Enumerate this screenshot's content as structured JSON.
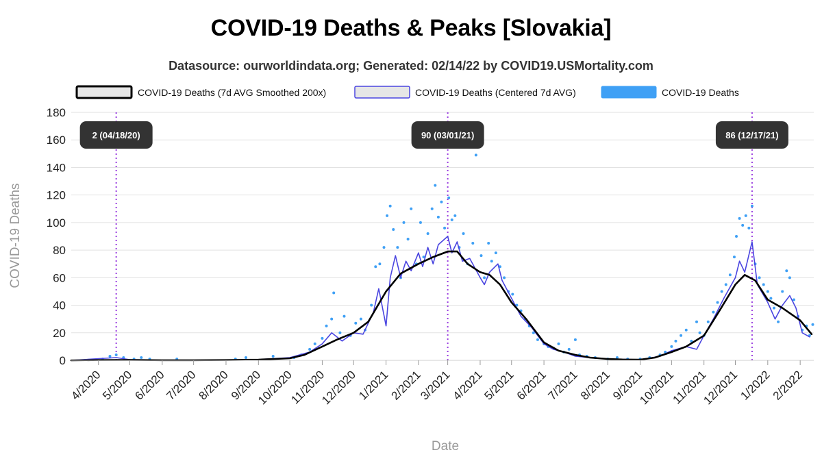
{
  "title": "COVID-19 Deaths & Peaks [Slovakia]",
  "subtitle": "Datasource: ourworldindata.org; Generated: 02/14/22 by COVID19.USMortality.com",
  "chart_data": {
    "type": "line",
    "xlabel": "Date",
    "ylabel": "COVID-19 Deaths",
    "ylim": [
      0,
      180
    ],
    "xlim": [
      "2020-03-06",
      "2022-02-14"
    ],
    "grid": true,
    "legend_position": "top",
    "y_ticks": [
      "0",
      "20",
      "40",
      "60",
      "80",
      "100",
      "120",
      "140",
      "160",
      "180"
    ],
    "x_ticks": [
      {
        "date": "2020-04-01",
        "label": "4/2020"
      },
      {
        "date": "2020-05-01",
        "label": "5/2020"
      },
      {
        "date": "2020-06-01",
        "label": "6/2020"
      },
      {
        "date": "2020-07-01",
        "label": "7/2020"
      },
      {
        "date": "2020-08-01",
        "label": "8/2020"
      },
      {
        "date": "2020-09-01",
        "label": "9/2020"
      },
      {
        "date": "2020-10-01",
        "label": "10/2020"
      },
      {
        "date": "2020-11-01",
        "label": "11/2020"
      },
      {
        "date": "2020-12-01",
        "label": "12/2020"
      },
      {
        "date": "2021-01-01",
        "label": "1/2021"
      },
      {
        "date": "2021-02-01",
        "label": "2/2021"
      },
      {
        "date": "2021-03-01",
        "label": "3/2021"
      },
      {
        "date": "2021-04-01",
        "label": "4/2021"
      },
      {
        "date": "2021-05-01",
        "label": "5/2021"
      },
      {
        "date": "2021-06-01",
        "label": "6/2021"
      },
      {
        "date": "2021-07-01",
        "label": "7/2021"
      },
      {
        "date": "2021-08-01",
        "label": "8/2021"
      },
      {
        "date": "2021-09-01",
        "label": "9/2021"
      },
      {
        "date": "2021-10-01",
        "label": "10/2021"
      },
      {
        "date": "2021-11-01",
        "label": "11/2021"
      },
      {
        "date": "2021-12-01",
        "label": "12/2021"
      },
      {
        "date": "2022-01-01",
        "label": "1/2022"
      },
      {
        "date": "2022-02-01",
        "label": "2/2022"
      }
    ],
    "peaks": [
      {
        "date": "2020-04-18",
        "value": 2,
        "label": "2 (04/18/20)"
      },
      {
        "date": "2021-03-01",
        "value": 90,
        "label": "90 (03/01/21)"
      },
      {
        "date": "2021-12-17",
        "value": 86,
        "label": "86 (12/17/21)"
      }
    ],
    "series": [
      {
        "name": "COVID-19 Deaths (7d AVG Smoothed 200x)",
        "style": "line",
        "color": "#000000",
        "points": [
          [
            "2020-03-06",
            0
          ],
          [
            "2020-04-01",
            0.2
          ],
          [
            "2020-05-01",
            0.3
          ],
          [
            "2020-06-01",
            0.1
          ],
          [
            "2020-07-01",
            0.1
          ],
          [
            "2020-08-01",
            0.2
          ],
          [
            "2020-09-01",
            0.5
          ],
          [
            "2020-10-01",
            1.5
          ],
          [
            "2020-10-15",
            4
          ],
          [
            "2020-11-01",
            10
          ],
          [
            "2020-11-15",
            15
          ],
          [
            "2020-12-01",
            20
          ],
          [
            "2020-12-15",
            28
          ],
          [
            "2021-01-01",
            50
          ],
          [
            "2021-01-15",
            63
          ],
          [
            "2021-02-01",
            70
          ],
          [
            "2021-02-15",
            75
          ],
          [
            "2021-03-01",
            79
          ],
          [
            "2021-03-10",
            79
          ],
          [
            "2021-03-20",
            70
          ],
          [
            "2021-04-01",
            64
          ],
          [
            "2021-04-10",
            62
          ],
          [
            "2021-04-20",
            55
          ],
          [
            "2021-05-01",
            42
          ],
          [
            "2021-05-15",
            30
          ],
          [
            "2021-06-01",
            13
          ],
          [
            "2021-06-15",
            7
          ],
          [
            "2021-07-01",
            4
          ],
          [
            "2021-07-15",
            2
          ],
          [
            "2021-08-01",
            1
          ],
          [
            "2021-08-15",
            0.6
          ],
          [
            "2021-09-01",
            0.5
          ],
          [
            "2021-09-15",
            2
          ],
          [
            "2021-10-01",
            6
          ],
          [
            "2021-10-15",
            10
          ],
          [
            "2021-11-01",
            18
          ],
          [
            "2021-11-15",
            35
          ],
          [
            "2021-12-01",
            55
          ],
          [
            "2021-12-10",
            62
          ],
          [
            "2021-12-20",
            58
          ],
          [
            "2022-01-01",
            44
          ],
          [
            "2022-01-15",
            38
          ],
          [
            "2022-02-01",
            29
          ],
          [
            "2022-02-12",
            19
          ]
        ]
      },
      {
        "name": "COVID-19 Deaths (Centered 7d AVG)",
        "style": "line",
        "color": "#4a45e0",
        "points": [
          [
            "2020-03-06",
            0
          ],
          [
            "2020-04-18",
            2
          ],
          [
            "2020-05-01",
            0.5
          ],
          [
            "2020-06-01",
            0.2
          ],
          [
            "2020-07-01",
            0.1
          ],
          [
            "2020-08-01",
            0.3
          ],
          [
            "2020-09-01",
            0.6
          ],
          [
            "2020-10-01",
            2
          ],
          [
            "2020-10-20",
            6
          ],
          [
            "2020-11-01",
            12
          ],
          [
            "2020-11-10",
            20
          ],
          [
            "2020-11-20",
            14
          ],
          [
            "2020-12-01",
            20
          ],
          [
            "2020-12-10",
            19
          ],
          [
            "2020-12-20",
            35
          ],
          [
            "2020-12-25",
            52
          ],
          [
            "2021-01-01",
            25
          ],
          [
            "2021-01-05",
            60
          ],
          [
            "2021-01-10",
            76
          ],
          [
            "2021-01-15",
            60
          ],
          [
            "2021-01-20",
            72
          ],
          [
            "2021-01-25",
            65
          ],
          [
            "2021-02-01",
            78
          ],
          [
            "2021-02-05",
            68
          ],
          [
            "2021-02-10",
            82
          ],
          [
            "2021-02-15",
            70
          ],
          [
            "2021-02-20",
            84
          ],
          [
            "2021-03-01",
            90
          ],
          [
            "2021-03-05",
            78
          ],
          [
            "2021-03-10",
            86
          ],
          [
            "2021-03-15",
            72
          ],
          [
            "2021-03-22",
            74
          ],
          [
            "2021-04-01",
            60
          ],
          [
            "2021-04-05",
            55
          ],
          [
            "2021-04-10",
            64
          ],
          [
            "2021-04-18",
            70
          ],
          [
            "2021-04-22",
            58
          ],
          [
            "2021-05-01",
            45
          ],
          [
            "2021-05-10",
            32
          ],
          [
            "2021-05-20",
            24
          ],
          [
            "2021-06-01",
            12
          ],
          [
            "2021-06-10",
            8
          ],
          [
            "2021-06-20",
            6
          ],
          [
            "2021-07-01",
            3
          ],
          [
            "2021-07-15",
            2
          ],
          [
            "2021-08-01",
            1
          ],
          [
            "2021-09-01",
            0.5
          ],
          [
            "2021-09-20",
            3
          ],
          [
            "2021-10-01",
            7
          ],
          [
            "2021-10-15",
            10
          ],
          [
            "2021-10-25",
            8
          ],
          [
            "2021-11-01",
            18
          ],
          [
            "2021-11-10",
            30
          ],
          [
            "2021-11-20",
            45
          ],
          [
            "2021-12-01",
            60
          ],
          [
            "2021-12-05",
            72
          ],
          [
            "2021-12-10",
            64
          ],
          [
            "2021-12-17",
            86
          ],
          [
            "2021-12-22",
            55
          ],
          [
            "2022-01-01",
            42
          ],
          [
            "2022-01-08",
            30
          ],
          [
            "2022-01-15",
            40
          ],
          [
            "2022-01-22",
            47
          ],
          [
            "2022-01-28",
            38
          ],
          [
            "2022-02-03",
            20
          ],
          [
            "2022-02-10",
            17
          ]
        ]
      },
      {
        "name": "COVID-19 Deaths",
        "style": "scatter",
        "color": "#3fa0f5",
        "points": [
          [
            "2020-04-05",
            1
          ],
          [
            "2020-04-12",
            3
          ],
          [
            "2020-04-18",
            4
          ],
          [
            "2020-04-25",
            2
          ],
          [
            "2020-05-05",
            1
          ],
          [
            "2020-05-12",
            2
          ],
          [
            "2020-05-20",
            1
          ],
          [
            "2020-06-15",
            1
          ],
          [
            "2020-08-10",
            1
          ],
          [
            "2020-08-20",
            2
          ],
          [
            "2020-09-15",
            3
          ],
          [
            "2020-10-05",
            2
          ],
          [
            "2020-10-12",
            4
          ],
          [
            "2020-10-20",
            8
          ],
          [
            "2020-10-25",
            12
          ],
          [
            "2020-11-01",
            16
          ],
          [
            "2020-11-05",
            25
          ],
          [
            "2020-11-10",
            30
          ],
          [
            "2020-11-12",
            49
          ],
          [
            "2020-11-18",
            20
          ],
          [
            "2020-11-22",
            32
          ],
          [
            "2020-11-28",
            18
          ],
          [
            "2020-12-03",
            27
          ],
          [
            "2020-12-08",
            30
          ],
          [
            "2020-12-12",
            22
          ],
          [
            "2020-12-18",
            40
          ],
          [
            "2020-12-22",
            68
          ],
          [
            "2020-12-26",
            70
          ],
          [
            "2020-12-30",
            82
          ],
          [
            "2021-01-02",
            105
          ],
          [
            "2021-01-05",
            112
          ],
          [
            "2021-01-08",
            95
          ],
          [
            "2021-01-12",
            82
          ],
          [
            "2021-01-15",
            60
          ],
          [
            "2021-01-18",
            100
          ],
          [
            "2021-01-22",
            88
          ],
          [
            "2021-01-25",
            110
          ],
          [
            "2021-01-30",
            70
          ],
          [
            "2021-02-03",
            100
          ],
          [
            "2021-02-06",
            75
          ],
          [
            "2021-02-10",
            92
          ],
          [
            "2021-02-14",
            110
          ],
          [
            "2021-02-17",
            127
          ],
          [
            "2021-02-20",
            104
          ],
          [
            "2021-02-23",
            115
          ],
          [
            "2021-02-26",
            96
          ],
          [
            "2021-03-02",
            118
          ],
          [
            "2021-03-05",
            102
          ],
          [
            "2021-03-08",
            105
          ],
          [
            "2021-03-12",
            82
          ],
          [
            "2021-03-16",
            92
          ],
          [
            "2021-03-20",
            70
          ],
          [
            "2021-03-25",
            85
          ],
          [
            "2021-03-28",
            149
          ],
          [
            "2021-04-02",
            76
          ],
          [
            "2021-04-05",
            60
          ],
          [
            "2021-04-09",
            85
          ],
          [
            "2021-04-12",
            72
          ],
          [
            "2021-04-16",
            78
          ],
          [
            "2021-04-20",
            68
          ],
          [
            "2021-04-24",
            60
          ],
          [
            "2021-04-28",
            50
          ],
          [
            "2021-05-02",
            48
          ],
          [
            "2021-05-06",
            40
          ],
          [
            "2021-05-10",
            36
          ],
          [
            "2021-05-14",
            30
          ],
          [
            "2021-05-18",
            25
          ],
          [
            "2021-05-22",
            20
          ],
          [
            "2021-05-26",
            15
          ],
          [
            "2021-06-01",
            12
          ],
          [
            "2021-06-05",
            10
          ],
          [
            "2021-06-10",
            9
          ],
          [
            "2021-06-15",
            12
          ],
          [
            "2021-06-20",
            6
          ],
          [
            "2021-06-25",
            8
          ],
          [
            "2021-07-01",
            15
          ],
          [
            "2021-07-05",
            4
          ],
          [
            "2021-07-12",
            3
          ],
          [
            "2021-07-20",
            2
          ],
          [
            "2021-08-01",
            1
          ],
          [
            "2021-08-10",
            2
          ],
          [
            "2021-08-20",
            1
          ],
          [
            "2021-09-01",
            1
          ],
          [
            "2021-09-10",
            2
          ],
          [
            "2021-09-20",
            4
          ],
          [
            "2021-09-25",
            6
          ],
          [
            "2021-10-01",
            10
          ],
          [
            "2021-10-05",
            14
          ],
          [
            "2021-10-10",
            18
          ],
          [
            "2021-10-15",
            22
          ],
          [
            "2021-10-20",
            14
          ],
          [
            "2021-10-25",
            28
          ],
          [
            "2021-10-28",
            20
          ],
          [
            "2021-11-01",
            18
          ],
          [
            "2021-11-05",
            28
          ],
          [
            "2021-11-10",
            35
          ],
          [
            "2021-11-14",
            42
          ],
          [
            "2021-11-18",
            50
          ],
          [
            "2021-11-22",
            55
          ],
          [
            "2021-11-26",
            62
          ],
          [
            "2021-11-30",
            75
          ],
          [
            "2021-12-02",
            90
          ],
          [
            "2021-12-05",
            103
          ],
          [
            "2021-12-08",
            98
          ],
          [
            "2021-12-11",
            105
          ],
          [
            "2021-12-14",
            96
          ],
          [
            "2021-12-17",
            112
          ],
          [
            "2021-12-20",
            70
          ],
          [
            "2021-12-24",
            60
          ],
          [
            "2021-12-28",
            55
          ],
          [
            "2022-01-01",
            50
          ],
          [
            "2022-01-04",
            45
          ],
          [
            "2022-01-07",
            38
          ],
          [
            "2022-01-11",
            28
          ],
          [
            "2022-01-15",
            50
          ],
          [
            "2022-01-19",
            65
          ],
          [
            "2022-01-22",
            60
          ],
          [
            "2022-01-26",
            44
          ],
          [
            "2022-01-30",
            32
          ],
          [
            "2022-02-03",
            22
          ],
          [
            "2022-02-07",
            25
          ],
          [
            "2022-02-10",
            18
          ],
          [
            "2022-02-13",
            26
          ]
        ]
      }
    ]
  }
}
